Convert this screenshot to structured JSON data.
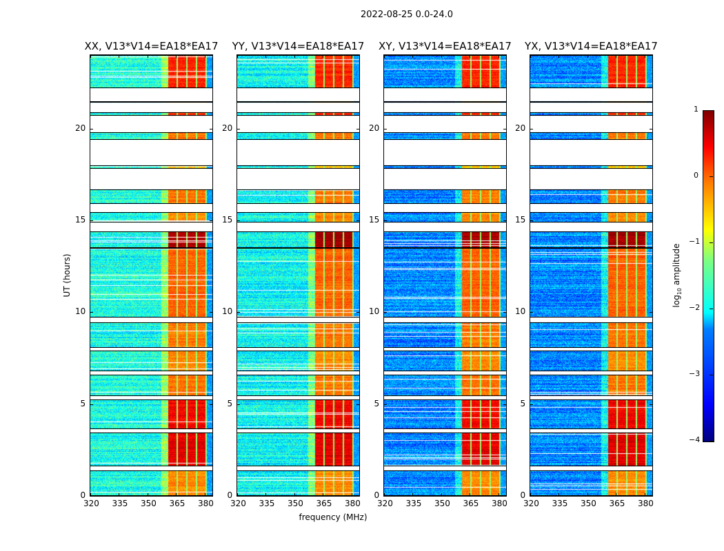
{
  "chart_data": {
    "type": "heatmap",
    "title": "2022-08-25 0.0-24.0",
    "xlabel": "frequency (MHz)",
    "ylabel": "UT (hours)",
    "xlim": [
      320,
      384
    ],
    "ylim": [
      0,
      24
    ],
    "xticks": [
      "320",
      "335",
      "350",
      "365",
      "380"
    ],
    "xtick_values": [
      320,
      335,
      350,
      365,
      380
    ],
    "yticks": [
      "0",
      "5",
      "10",
      "15",
      "20"
    ],
    "ytick_values": [
      0,
      5,
      10,
      15,
      20
    ],
    "colorbar": {
      "label_prefix": "log",
      "label_sub": "10",
      "label_suffix": " amplitude",
      "range": [
        -4,
        1
      ],
      "ticks": [
        "1",
        "0",
        "−1",
        "−2",
        "−3",
        "−4"
      ],
      "tick_values": [
        1,
        0,
        -1,
        -2,
        -3,
        -4
      ],
      "colormap": "jet"
    },
    "rfi_band_mhz": [
      360.5,
      381
    ],
    "panels": [
      {
        "title": "XX, V13*V14=EA18*EA17",
        "base_level": -2.0
      },
      {
        "title": "YY, V13*V14=EA18*EA17",
        "base_level": -2.1
      },
      {
        "title": "XY, V13*V14=EA18*EA17",
        "base_level": -2.7
      },
      {
        "title": "YX, V13*V14=EA18*EA17",
        "base_level": -2.7
      }
    ],
    "data_segments_hours": [
      {
        "start": 22.2,
        "end": 24.0,
        "rfi_level": 0.2
      },
      {
        "start": 21.4,
        "end": 21.5,
        "rfi_level": -0.5
      },
      {
        "start": 20.7,
        "end": 20.9,
        "rfi_level": 0.2
      },
      {
        "start": 19.4,
        "end": 19.8,
        "rfi_level": -0.2
      },
      {
        "start": 17.8,
        "end": 18.0,
        "rfi_level": -0.6
      },
      {
        "start": 15.9,
        "end": 16.7,
        "rfi_level": -0.2
      },
      {
        "start": 14.9,
        "end": 15.45,
        "rfi_level": -0.3
      },
      {
        "start": 13.5,
        "end": 14.4,
        "rfi_level": 0.8
      },
      {
        "start": 9.7,
        "end": 13.5,
        "rfi_level": -0.1
      },
      {
        "start": 8.05,
        "end": 9.45,
        "rfi_level": -0.2
      },
      {
        "start": 6.8,
        "end": 7.9,
        "rfi_level": -0.3
      },
      {
        "start": 5.45,
        "end": 6.6,
        "rfi_level": -0.2
      },
      {
        "start": 3.65,
        "end": 5.25,
        "rfi_level": 0.4
      },
      {
        "start": 1.6,
        "end": 3.45,
        "rfi_level": 0.5
      },
      {
        "start": 0.0,
        "end": 1.4,
        "rfi_level": -0.3
      }
    ]
  }
}
